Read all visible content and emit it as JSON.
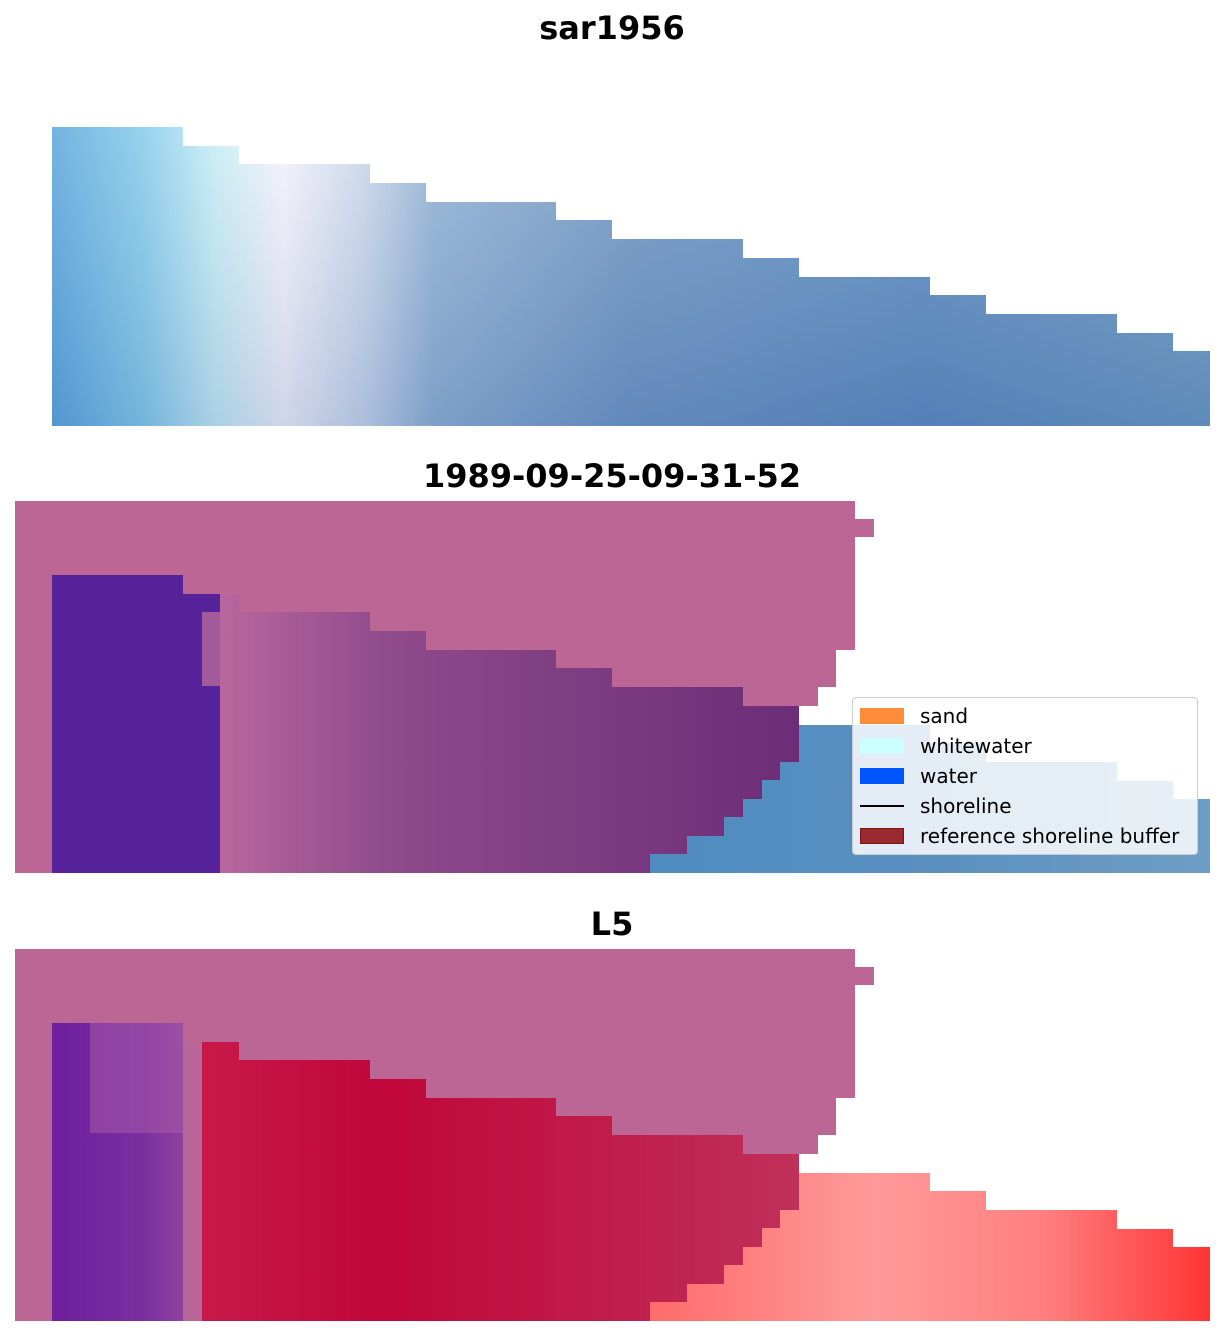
{
  "panels": [
    {
      "title": "sar1956"
    },
    {
      "title": "1989-09-25-09-31-52"
    },
    {
      "title": "L5"
    }
  ],
  "legend": {
    "items": [
      {
        "label": "sand",
        "kind": "patch",
        "color": "#ff8c3a"
      },
      {
        "label": "whitewater",
        "kind": "patch",
        "color": "#ccffff"
      },
      {
        "label": "water",
        "kind": "patch",
        "color": "#0055ff"
      },
      {
        "label": "shoreline",
        "kind": "line",
        "color": "#000000"
      },
      {
        "label": "reference shoreline buffer",
        "kind": "patch",
        "color": "#8b2323"
      }
    ]
  },
  "colors": {
    "reference_buffer_overlay": "#bc6696",
    "water_blue": "#5b8fbf",
    "whitewater_light": "#eef6ff",
    "purple_class": "#55229a",
    "red_class": "#c0163a",
    "pink_class": "#ff8a8a"
  }
}
